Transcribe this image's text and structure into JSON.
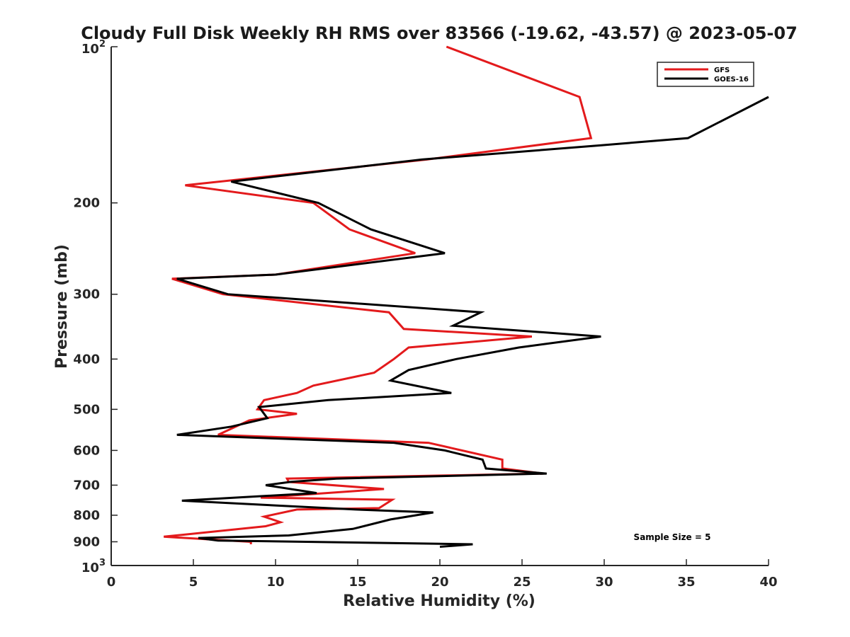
{
  "chart_data": {
    "type": "line",
    "title": "Cloudy Full Disk Weekly RH RMS over 83566 (-19.62, -43.57) @ 2023-05-07",
    "xlabel": "Relative Humidity (%)",
    "ylabel": "Pressure (mb)",
    "xlim": [
      0,
      40
    ],
    "ylim": [
      100,
      1000
    ],
    "yscale": "log",
    "y_reversed": true,
    "grid": false,
    "legend_position": "top-right",
    "x_ticks": [
      0,
      5,
      10,
      15,
      20,
      25,
      30,
      35,
      40
    ],
    "y_ticks": [
      {
        "value": 100,
        "base": "10",
        "exp": "2"
      },
      {
        "value": 200,
        "label": "200"
      },
      {
        "value": 300,
        "label": "300"
      },
      {
        "value": 400,
        "label": "400"
      },
      {
        "value": 500,
        "label": "500"
      },
      {
        "value": 600,
        "label": "600"
      },
      {
        "value": 700,
        "label": "700"
      },
      {
        "value": 800,
        "label": "800"
      },
      {
        "value": 900,
        "label": "900"
      },
      {
        "value": 1000,
        "base": "10",
        "exp": "3"
      }
    ],
    "series": [
      {
        "name": "GFS",
        "color": "#e31a1c",
        "points": [
          [
            20.4,
            100
          ],
          [
            28.5,
            125
          ],
          [
            29.2,
            150
          ],
          [
            19.2,
            165
          ],
          [
            4.5,
            185
          ],
          [
            12.3,
            200
          ],
          [
            14.5,
            225
          ],
          [
            18.5,
            250
          ],
          [
            10.0,
            275
          ],
          [
            3.7,
            280
          ],
          [
            6.8,
            300
          ],
          [
            16.9,
            325
          ],
          [
            17.8,
            350
          ],
          [
            25.6,
            362
          ],
          [
            18.1,
            380
          ],
          [
            17.2,
            400
          ],
          [
            16.0,
            425
          ],
          [
            12.3,
            450
          ],
          [
            11.3,
            465
          ],
          [
            9.3,
            480
          ],
          [
            8.9,
            500
          ],
          [
            11.3,
            510
          ],
          [
            8.4,
            525
          ],
          [
            6.5,
            560
          ],
          [
            19.3,
            580
          ],
          [
            23.8,
            625
          ],
          [
            23.8,
            650
          ],
          [
            26.3,
            665
          ],
          [
            10.7,
            680
          ],
          [
            10.8,
            690
          ],
          [
            16.6,
            712
          ],
          [
            9.1,
            740
          ],
          [
            17.1,
            747
          ],
          [
            16.3,
            775
          ],
          [
            11.3,
            780
          ],
          [
            9.3,
            805
          ],
          [
            10.3,
            825
          ],
          [
            9.4,
            840
          ],
          [
            3.2,
            880
          ],
          [
            8.5,
            900
          ],
          [
            8.5,
            910
          ]
        ]
      },
      {
        "name": "GOES-16",
        "color": "#000000",
        "points": [
          [
            40.0,
            125
          ],
          [
            35.1,
            150
          ],
          [
            29.7,
            155
          ],
          [
            18.9,
            165
          ],
          [
            7.3,
            182
          ],
          [
            12.6,
            200
          ],
          [
            15.8,
            225
          ],
          [
            20.3,
            250
          ],
          [
            10.0,
            275
          ],
          [
            4.0,
            280
          ],
          [
            7.1,
            300
          ],
          [
            22.5,
            325
          ],
          [
            20.8,
            345
          ],
          [
            29.8,
            362
          ],
          [
            24.8,
            380
          ],
          [
            21.0,
            400
          ],
          [
            18.1,
            420
          ],
          [
            17.0,
            440
          ],
          [
            20.7,
            465
          ],
          [
            13.2,
            480
          ],
          [
            9.0,
            495
          ],
          [
            9.5,
            520
          ],
          [
            7.3,
            540
          ],
          [
            4.0,
            560
          ],
          [
            17.2,
            580
          ],
          [
            20.3,
            600
          ],
          [
            22.6,
            625
          ],
          [
            22.8,
            650
          ],
          [
            26.5,
            665
          ],
          [
            13.7,
            680
          ],
          [
            10.9,
            690
          ],
          [
            9.4,
            700
          ],
          [
            12.5,
            725
          ],
          [
            4.3,
            750
          ],
          [
            14.9,
            780
          ],
          [
            19.6,
            790
          ],
          [
            17.0,
            815
          ],
          [
            14.7,
            850
          ],
          [
            10.8,
            875
          ],
          [
            5.3,
            885
          ],
          [
            6.5,
            895
          ],
          [
            22.0,
            910
          ],
          [
            20.0,
            920
          ]
        ]
      }
    ],
    "annotations": [
      {
        "text": "Sample Size = 5",
        "x": 35,
        "y": 910
      }
    ]
  }
}
